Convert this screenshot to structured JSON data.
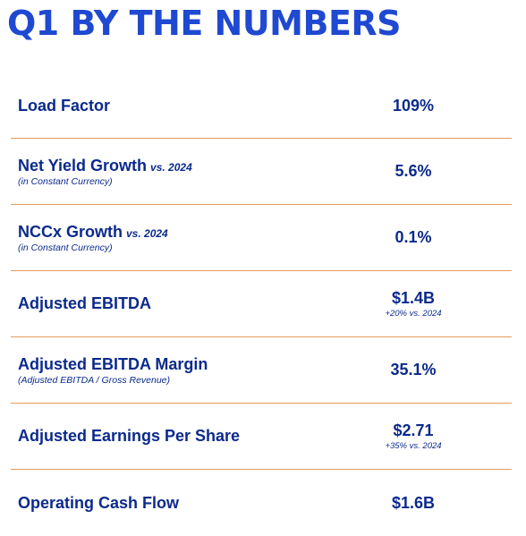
{
  "title": "Q1 BY THE NUMBERS",
  "colors": {
    "title": "#1f49d1",
    "text": "#0b2a8c",
    "divider": "#e89a5a"
  },
  "metrics": [
    {
      "label": "Load Factor",
      "value": "109%"
    },
    {
      "label": "Net Yield Growth",
      "qualifier": "vs. 2024",
      "note": "(in Constant Currency)",
      "value": "5.6%"
    },
    {
      "label": "NCCx Growth",
      "qualifier": "vs. 2024",
      "note": "(in Constant Currency)",
      "value": "0.1%"
    },
    {
      "label": "Adjusted EBITDA",
      "value": "$1.4B",
      "subvalue": "+20% vs. 2024"
    },
    {
      "label": "Adjusted EBITDA Margin",
      "note": "(Adjusted EBITDA / Gross Revenue)",
      "value": "35.1%"
    },
    {
      "label": "Adjusted Earnings Per Share",
      "value": "$2.71",
      "subvalue": "+35% vs. 2024"
    },
    {
      "label": "Operating Cash Flow",
      "value": "$1.6B"
    }
  ]
}
